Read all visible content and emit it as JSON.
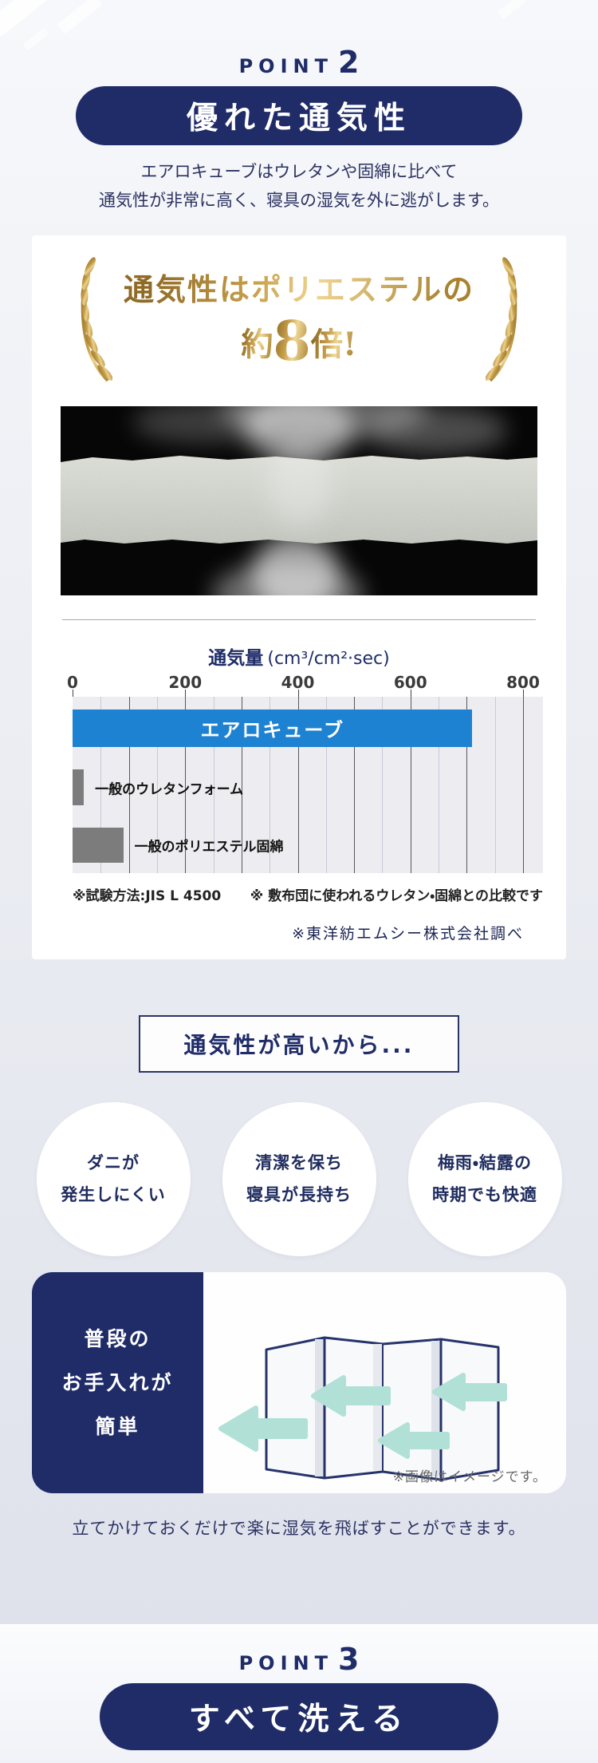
{
  "colors": {
    "navy": "#1f2c68",
    "chart_blue": "#1e82d2",
    "chart_gray": "#7c7c7c",
    "arrow_teal": "#b0e0d6",
    "gold": "#c8a14c"
  },
  "point2": {
    "eyebrow": "POINT",
    "number": "2",
    "pill_title": "優れた通気性",
    "desc_line1": "エアロキューブはウレタンや固綿に比べて",
    "desc_line2": "通気性が非常に高く、寝具の湿気を外に逃がします。"
  },
  "award": {
    "line1": "通気性はポリエステルの",
    "about": "約",
    "big_number": "8",
    "suffix": "倍!"
  },
  "chart_data": {
    "type": "bar",
    "orientation": "horizontal",
    "title": "通気量 (cm³/cm²·sec)",
    "title_main": "通気量",
    "title_unit": "(cm³/cm²·sec)",
    "categories": [
      "エアロキューブ",
      "一般のウレタンフォーム",
      "一般のポリエステル固綿"
    ],
    "values": [
      710,
      20,
      90
    ],
    "bar_colors": [
      "#1e82d2",
      "#7c7c7c",
      "#7c7c7c"
    ],
    "xlim": [
      0,
      800
    ],
    "ticks": [
      0,
      200,
      400,
      600,
      800
    ],
    "grid": "vertical, major every 100, minor every 50",
    "notes": [
      "※試験方法:JIS L 4500",
      "※ 敷布団に使われるウレタン・固綿との比較です"
    ],
    "source": "※東洋紡エムシー株式会社調べ"
  },
  "benefits": {
    "heading": "通気性が高いから...",
    "circles": [
      {
        "line1": "ダニが",
        "line2": "発生しにくい"
      },
      {
        "line1": "清潔を保ち",
        "line2": "寝具が長持ち"
      },
      {
        "line1": "梅雨・結露の",
        "line2": "時期でも快適"
      }
    ]
  },
  "care": {
    "line1": "普段の",
    "line2": "お手入れが",
    "line3": "簡単",
    "image_note": "※画像はイメージです。",
    "caption": "立てかけておくだけで楽に湿気を飛ばすことができます。"
  },
  "point3": {
    "eyebrow": "POINT",
    "number": "3",
    "pill_title": "すべて洗える"
  }
}
